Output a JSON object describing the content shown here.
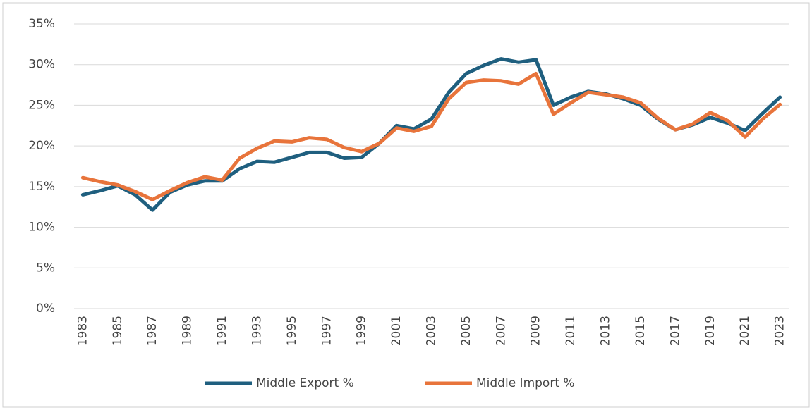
{
  "chart_data": {
    "type": "line",
    "categories": [
      "1983",
      null,
      "1985",
      null,
      "1987",
      null,
      "1989",
      null,
      "1991",
      null,
      "1993",
      null,
      "1995",
      null,
      "1997",
      null,
      "1999",
      null,
      "2001",
      null,
      "2003",
      null,
      "2005",
      null,
      "2007",
      null,
      "2009",
      null,
      "2011",
      null,
      "2013",
      null,
      "2015",
      null,
      "2017",
      null,
      "2019",
      null,
      "2021",
      null,
      "2023"
    ],
    "series": [
      {
        "name": "Middle Export %",
        "color": "#1f5f7f",
        "values": [
          14.0,
          14.5,
          15.1,
          14.0,
          12.1,
          14.3,
          15.2,
          15.7,
          15.7,
          17.2,
          18.1,
          18.0,
          18.6,
          19.2,
          19.2,
          18.5,
          18.6,
          20.3,
          22.5,
          22.1,
          23.3,
          26.6,
          28.9,
          29.9,
          30.7,
          30.3,
          30.6,
          25.0,
          26.0,
          26.7,
          26.4,
          25.8,
          25.0,
          23.3,
          22.0,
          22.6,
          23.5,
          22.8,
          21.9,
          24.0,
          26.0
        ]
      },
      {
        "name": "Middle Import %",
        "color": "#e8743b",
        "values": [
          16.1,
          15.6,
          15.2,
          14.4,
          13.4,
          14.5,
          15.5,
          16.2,
          15.8,
          18.5,
          19.7,
          20.6,
          20.5,
          21.0,
          20.8,
          19.8,
          19.3,
          20.3,
          22.2,
          21.8,
          22.4,
          25.8,
          27.8,
          28.1,
          28.0,
          27.6,
          28.9,
          23.9,
          25.3,
          26.6,
          26.3,
          26.0,
          25.3,
          23.4,
          22.0,
          22.7,
          24.1,
          23.1,
          21.1,
          23.3,
          25.1
        ]
      }
    ],
    "ylim": [
      0,
      35
    ],
    "yticks": [
      {
        "value": 0,
        "label": "0%"
      },
      {
        "value": 5,
        "label": "5%"
      },
      {
        "value": 10,
        "label": "10%"
      },
      {
        "value": 15,
        "label": "15%"
      },
      {
        "value": 20,
        "label": "20%"
      },
      {
        "value": 25,
        "label": "25%"
      },
      {
        "value": 30,
        "label": "30%"
      },
      {
        "value": 35,
        "label": "35%"
      }
    ],
    "grid": true,
    "legend": "bottom"
  }
}
